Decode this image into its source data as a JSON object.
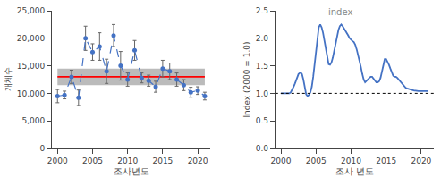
{
  "chart_data": [
    {
      "type": "line",
      "xlabel": "조사년도",
      "ylabel": "개체수",
      "x": [
        2000,
        2001,
        2002,
        2003,
        2004,
        2005,
        2006,
        2007,
        2008,
        2009,
        2010,
        2011,
        2012,
        2013,
        2014,
        2015,
        2016,
        2017,
        2018,
        2019,
        2020,
        2021
      ],
      "series": [
        {
          "type": "band",
          "x": [
            2000,
            2021
          ],
          "lower": [
            11500,
            11500
          ],
          "upper": [
            14500,
            14500
          ],
          "color": "#BBBBBB"
        },
        {
          "type": "line",
          "x": [
            2000,
            2021
          ],
          "values": [
            13000,
            13000
          ],
          "color": "#FF0000",
          "line_style": "solid"
        },
        {
          "type": "line",
          "values": [
            9500,
            9700,
            13000,
            9200,
            20000,
            17500,
            18500,
            14000,
            20500,
            15000,
            12500,
            17800,
            12800,
            12300,
            11200,
            14500,
            14000,
            12500,
            11500,
            10200,
            10500,
            9500
          ],
          "errors": [
            1200,
            700,
            1200,
            1400,
            2200,
            1500,
            2500,
            2200,
            2000,
            2600,
            1200,
            1800,
            900,
            1000,
            1000,
            1500,
            1500,
            1200,
            1000,
            900,
            700,
            700
          ],
          "error_color": "#666666",
          "color": "#4472C4",
          "line_style": "dashed",
          "marker": "circle"
        }
      ],
      "xlim": [
        1999.2,
        2021.8
      ],
      "xticks": [
        2000,
        2005,
        2010,
        2015,
        2020
      ],
      "ylim": [
        0,
        25000
      ],
      "yticks": [
        0,
        {
          "value": 5000,
          "label": "5,000"
        },
        {
          "value": 10000,
          "label": "10,000"
        },
        {
          "value": 15000,
          "label": "15,000"
        },
        {
          "value": 20000,
          "label": "20,000"
        },
        {
          "value": 25000,
          "label": "25,000"
        }
      ],
      "grid": false
    },
    {
      "type": "line",
      "xlabel": "조사 년도",
      "ylabel": "Index (2000 = 1.0)",
      "x": [
        2000.0,
        2000.2,
        2000.4,
        2000.6,
        2000.8,
        2001.0,
        2001.2,
        2001.4,
        2001.6,
        2001.8,
        2002.0,
        2002.2,
        2002.5,
        2002.8,
        2003.0,
        2003.2,
        2003.4,
        2003.6,
        2003.8,
        2004.0,
        2004.2,
        2004.4,
        2004.6,
        2004.8,
        2005.0,
        2005.2,
        2005.4,
        2005.6,
        2005.8,
        2006.0,
        2006.2,
        2006.4,
        2006.6,
        2006.8,
        2007.0,
        2007.2,
        2007.4,
        2007.6,
        2007.8,
        2008.0,
        2008.2,
        2008.4,
        2008.6,
        2008.8,
        2009.0,
        2009.2,
        2009.4,
        2009.6,
        2009.8,
        2010.0,
        2010.2,
        2010.4,
        2010.6,
        2010.8,
        2011.0,
        2011.2,
        2011.4,
        2011.6,
        2011.8,
        2012.0,
        2012.2,
        2012.4,
        2012.6,
        2012.8,
        2013.0,
        2013.2,
        2013.4,
        2013.6,
        2013.8,
        2014.0,
        2014.2,
        2014.4,
        2014.6,
        2014.8,
        2015.0,
        2015.2,
        2015.4,
        2015.6,
        2015.8,
        2016.0,
        2016.2,
        2016.4,
        2016.6,
        2016.8,
        2017.0,
        2017.2,
        2017.4,
        2017.6,
        2017.8,
        2018.0,
        2018.2,
        2018.4,
        2018.6,
        2018.8,
        2019.0,
        2019.2,
        2019.4,
        2019.6,
        2019.8,
        2020.0,
        2020.2,
        2020.4,
        2020.6,
        2020.8,
        2021.0
      ],
      "series": [
        {
          "type": "line",
          "values": [
            1.0,
            1.0,
            1.0,
            0.99,
            0.99,
            0.99,
            1.0,
            1.02,
            1.06,
            1.12,
            1.18,
            1.26,
            1.35,
            1.38,
            1.35,
            1.25,
            1.1,
            0.98,
            0.95,
            0.97,
            1.02,
            1.12,
            1.3,
            1.55,
            1.8,
            2.05,
            2.2,
            2.25,
            2.2,
            2.1,
            1.95,
            1.78,
            1.62,
            1.53,
            1.52,
            1.56,
            1.65,
            1.78,
            1.93,
            2.05,
            2.15,
            2.22,
            2.25,
            2.22,
            2.18,
            2.15,
            2.1,
            2.05,
            2.0,
            1.97,
            1.95,
            1.93,
            1.88,
            1.8,
            1.7,
            1.6,
            1.48,
            1.35,
            1.25,
            1.2,
            1.22,
            1.25,
            1.28,
            1.3,
            1.3,
            1.27,
            1.23,
            1.2,
            1.2,
            1.22,
            1.28,
            1.38,
            1.5,
            1.62,
            1.62,
            1.58,
            1.52,
            1.45,
            1.38,
            1.32,
            1.3,
            1.3,
            1.28,
            1.25,
            1.22,
            1.18,
            1.15,
            1.12,
            1.1,
            1.09,
            1.08,
            1.07,
            1.06,
            1.055,
            1.05,
            1.05,
            1.04,
            1.04,
            1.04,
            1.04,
            1.04,
            1.04,
            1.04,
            1.04,
            1.04
          ],
          "color": "#4472C4",
          "line_style": "solid"
        }
      ],
      "reference_line": {
        "y": 1.0,
        "color": "#000000",
        "line_style": "dotted"
      },
      "annotations": [
        {
          "text": "index",
          "x": 2008.5,
          "y": 2.35,
          "color": "#888888"
        }
      ],
      "xlim": [
        1999.2,
        2021.8
      ],
      "xticks": [
        2000,
        2005,
        2010,
        2015,
        2020
      ],
      "ylim": [
        0.0,
        2.5
      ],
      "yticks": [
        {
          "value": 0.0,
          "label": "0.0"
        },
        0.5,
        {
          "value": 1.0,
          "label": "1.0"
        },
        1.5,
        {
          "value": 2.0,
          "label": "2.0"
        },
        2.5
      ],
      "grid": false
    }
  ]
}
